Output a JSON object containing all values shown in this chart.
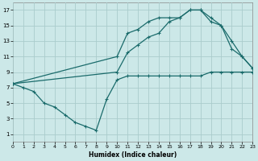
{
  "xlabel": "Humidex (Indice chaleur)",
  "bg_color": "#cce8e8",
  "grid_color": "#aacccc",
  "line_color": "#1a6b6b",
  "line1_x": [
    0,
    1,
    2,
    3,
    4,
    5,
    6,
    7,
    8,
    9,
    10,
    11,
    12,
    13,
    14,
    15,
    16,
    17,
    18,
    19,
    20,
    21,
    22,
    23
  ],
  "line1_y": [
    7.5,
    7,
    6.5,
    5,
    4.5,
    3.5,
    2.5,
    2.0,
    1.5,
    5.5,
    8,
    8.5,
    8.5,
    8.5,
    8.5,
    8.5,
    8.5,
    8.5,
    8.5,
    9,
    9,
    9,
    9,
    9
  ],
  "line2_x": [
    0,
    10,
    11,
    12,
    13,
    14,
    15,
    16,
    17,
    18,
    19,
    20,
    21,
    22,
    23
  ],
  "line2_y": [
    7.5,
    11,
    14,
    14.5,
    15.5,
    16,
    16,
    16,
    17,
    17,
    15.5,
    15,
    12,
    11,
    9.5
  ],
  "line3_x": [
    0,
    10,
    11,
    12,
    13,
    14,
    15,
    16,
    17,
    18,
    19,
    20,
    21,
    22,
    23
  ],
  "line3_y": [
    7.5,
    9,
    11.5,
    12.5,
    13.5,
    14,
    15.5,
    16,
    17,
    17,
    16,
    15,
    13,
    11,
    9.5
  ],
  "xlim": [
    0,
    23
  ],
  "ylim": [
    0,
    18
  ],
  "yticks": [
    1,
    3,
    5,
    7,
    9,
    11,
    13,
    15,
    17
  ],
  "xticks": [
    0,
    1,
    2,
    3,
    4,
    5,
    6,
    7,
    8,
    9,
    10,
    11,
    12,
    13,
    14,
    15,
    16,
    17,
    18,
    19,
    20,
    21,
    22,
    23
  ]
}
